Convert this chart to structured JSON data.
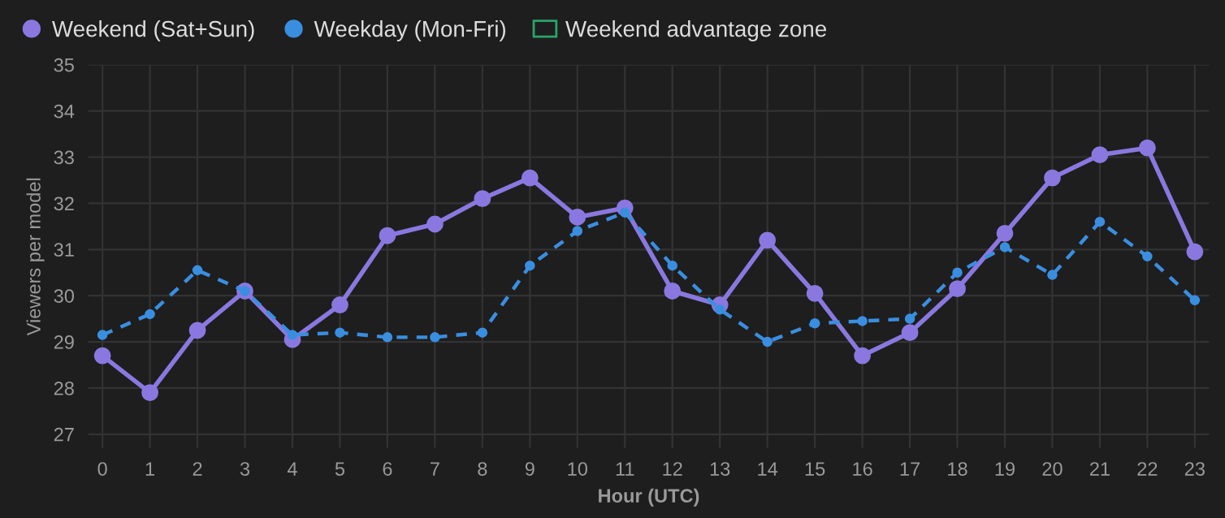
{
  "chart_data": {
    "type": "line",
    "xlabel": "Hour (UTC)",
    "ylabel": "Viewers per model",
    "x": [
      0,
      1,
      2,
      3,
      4,
      5,
      6,
      7,
      8,
      9,
      10,
      11,
      12,
      13,
      14,
      15,
      16,
      17,
      18,
      19,
      20,
      21,
      22,
      23
    ],
    "series": [
      {
        "name": "Weekend (Sat+Sun)",
        "color": "#8a78e0",
        "line_style": "solid",
        "values": [
          28.7,
          27.9,
          29.25,
          30.1,
          29.05,
          29.8,
          31.3,
          31.55,
          32.1,
          32.55,
          31.7,
          31.9,
          30.1,
          29.8,
          31.2,
          30.05,
          28.7,
          29.2,
          30.15,
          31.35,
          32.55,
          33.05,
          33.2,
          30.95
        ]
      },
      {
        "name": "Weekday (Mon-Fri)",
        "color": "#3a8ee0",
        "line_style": "dashed",
        "values": [
          29.15,
          29.6,
          30.55,
          30.1,
          29.15,
          29.2,
          29.1,
          29.1,
          29.2,
          30.65,
          31.4,
          31.8,
          30.65,
          29.7,
          29.0,
          29.4,
          29.45,
          29.5,
          30.5,
          31.05,
          30.45,
          31.6,
          30.85,
          29.9
        ]
      },
      {
        "name": "Weekend advantage zone",
        "type": "area",
        "color": "#2aa36b",
        "values": [
          null,
          null,
          null,
          null,
          null,
          null,
          null,
          null,
          null,
          null,
          null,
          null,
          null,
          null,
          null,
          null,
          null,
          null,
          null,
          null,
          null,
          null,
          null,
          null
        ]
      }
    ],
    "xlim": [
      -0.3,
      23.3
    ],
    "xticks": [
      0,
      1,
      2,
      3,
      4,
      5,
      6,
      7,
      8,
      9,
      10,
      11,
      12,
      13,
      14,
      15,
      16,
      17,
      18,
      19,
      20,
      21,
      22,
      23
    ],
    "ylim": [
      26.7,
      35
    ],
    "yticks": [
      27,
      28,
      29,
      30,
      31,
      32,
      33,
      34,
      35
    ],
    "grid": true,
    "legend": "top left",
    "marker": "circle"
  }
}
